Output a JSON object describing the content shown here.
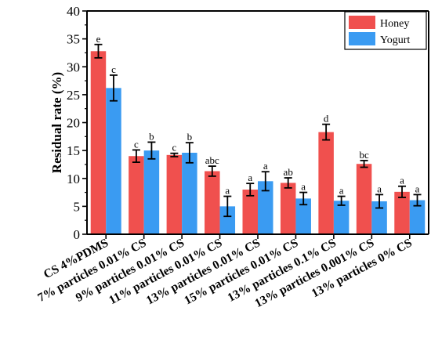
{
  "chart_data": {
    "type": "bar",
    "xlabel": "",
    "ylabel": "Residual rate (%)",
    "ylim": [
      0,
      40
    ],
    "yticks": [
      0,
      5,
      10,
      15,
      20,
      25,
      30,
      35,
      40
    ],
    "grid": false,
    "legend_position": "top-right",
    "categories": [
      "CS 4%PDMS",
      "7% particles 0.01% CS",
      "9% particles 0.01% CS",
      "11% particles 0.01% CS",
      "13% particles 0.01% CS",
      "15% particles 0.01% CS",
      "13% particles 0.1% CS",
      "13% particles 0.001% CS",
      "13% particles 0% CS"
    ],
    "series": [
      {
        "name": "Honey",
        "color": "#f0504e",
        "values": [
          32.8,
          14.0,
          14.2,
          11.3,
          8.0,
          9.2,
          18.3,
          12.6,
          7.6
        ],
        "errors": [
          1.2,
          1.1,
          0.3,
          0.9,
          1.1,
          0.9,
          1.4,
          0.6,
          1.0
        ],
        "labels": [
          "e",
          "c",
          "c",
          "abc",
          "a",
          "ab",
          "d",
          "bc",
          "a"
        ]
      },
      {
        "name": "Yogurt",
        "color": "#3a9bf2",
        "values": [
          26.2,
          15.0,
          14.6,
          5.0,
          9.5,
          6.4,
          6.0,
          5.9,
          6.1
        ],
        "errors": [
          2.3,
          1.5,
          1.8,
          1.8,
          1.7,
          1.1,
          0.8,
          1.2,
          1.0
        ],
        "labels": [
          "c",
          "b",
          "b",
          "a",
          "a",
          "a",
          "a",
          "a",
          "a"
        ]
      }
    ]
  }
}
